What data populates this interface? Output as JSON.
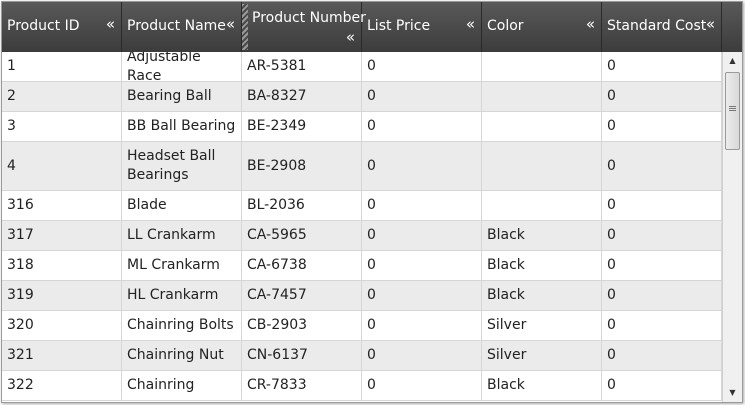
{
  "header": {
    "columns": [
      {
        "label": "Product ID",
        "menu_icon": "«"
      },
      {
        "label": "Product Name",
        "menu_icon": "«"
      },
      {
        "label": "Product Number",
        "menu_icon": "«"
      },
      {
        "label": "List Price",
        "menu_icon": "«"
      },
      {
        "label": "Color",
        "menu_icon": "«"
      },
      {
        "label": "Standard Cost",
        "menu_icon": "«"
      }
    ]
  },
  "rows": [
    {
      "id": "1",
      "name": "Adjustable Race",
      "number": "AR-5381",
      "price": "0",
      "color": "",
      "cost": "0"
    },
    {
      "id": "2",
      "name": "Bearing Ball",
      "number": "BA-8327",
      "price": "0",
      "color": "",
      "cost": "0"
    },
    {
      "id": "3",
      "name": "BB Ball Bearing",
      "number": "BE-2349",
      "price": "0",
      "color": "",
      "cost": "0"
    },
    {
      "id": "4",
      "name": "Headset Ball Bearings",
      "number": "BE-2908",
      "price": "0",
      "color": "",
      "cost": "0"
    },
    {
      "id": "316",
      "name": "Blade",
      "number": "BL-2036",
      "price": "0",
      "color": "",
      "cost": "0"
    },
    {
      "id": "317",
      "name": "LL Crankarm",
      "number": "CA-5965",
      "price": "0",
      "color": "Black",
      "cost": "0"
    },
    {
      "id": "318",
      "name": "ML Crankarm",
      "number": "CA-6738",
      "price": "0",
      "color": "Black",
      "cost": "0"
    },
    {
      "id": "319",
      "name": "HL Crankarm",
      "number": "CA-7457",
      "price": "0",
      "color": "Black",
      "cost": "0"
    },
    {
      "id": "320",
      "name": "Chainring Bolts",
      "number": "CB-2903",
      "price": "0",
      "color": "Silver",
      "cost": "0"
    },
    {
      "id": "321",
      "name": "Chainring Nut",
      "number": "CN-6137",
      "price": "0",
      "color": "Silver",
      "cost": "0"
    },
    {
      "id": "322",
      "name": "Chainring",
      "number": "CR-7833",
      "price": "0",
      "color": "Black",
      "cost": "0"
    }
  ],
  "scrollbar": {
    "up_icon": "▲",
    "down_icon": "▼"
  },
  "colors": {
    "header_bg": "#474747",
    "header_text": "#ffffff",
    "row_alt": "#ebebeb",
    "grid_line": "#d6d6d6"
  }
}
